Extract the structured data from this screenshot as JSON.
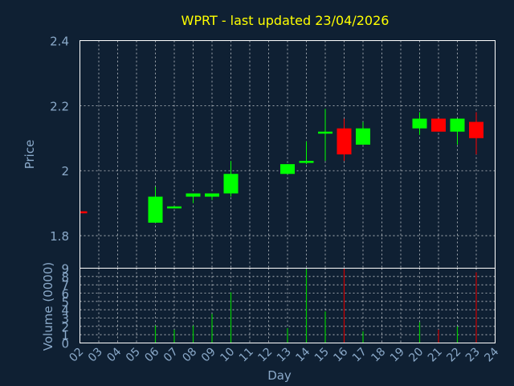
{
  "chart_data": {
    "type": "candlestick",
    "title": "WPRT - last updated 23/04/2026",
    "xlabel": "Day",
    "price_ylabel": "Price",
    "volume_ylabel": "Volume (0000)",
    "categories": [
      "02",
      "03",
      "04",
      "05",
      "06",
      "07",
      "08",
      "09",
      "10",
      "11",
      "12",
      "13",
      "14",
      "15",
      "16",
      "17",
      "18",
      "19",
      "20",
      "21",
      "22",
      "23",
      "24"
    ],
    "price_ylim": [
      1.7,
      2.4
    ],
    "price_ticks": [
      "1.8",
      "2",
      "2.2",
      "2.4"
    ],
    "volume_ylim": [
      0,
      9
    ],
    "volume_ticks": [
      "0",
      "1",
      "2",
      "3",
      "4",
      "5",
      "6",
      "7",
      "8",
      "9"
    ],
    "grid": true,
    "candles": [
      {
        "day": "02",
        "open": 1.875,
        "high": 1.875,
        "low": 1.87,
        "close": 1.87,
        "volume": 0.0
      },
      {
        "day": "06",
        "open": 1.84,
        "high": 1.95,
        "low": 1.84,
        "close": 1.92,
        "volume": 2.1
      },
      {
        "day": "07",
        "open": 1.89,
        "high": 1.89,
        "low": 1.885,
        "close": 1.89,
        "volume": 1.6
      },
      {
        "day": "08",
        "open": 1.92,
        "high": 1.93,
        "low": 1.9,
        "close": 1.93,
        "volume": 2.1
      },
      {
        "day": "09",
        "open": 1.92,
        "high": 1.93,
        "low": 1.91,
        "close": 1.93,
        "volume": 3.5
      },
      {
        "day": "10",
        "open": 1.93,
        "high": 2.03,
        "low": 1.92,
        "close": 1.99,
        "volume": 6.1
      },
      {
        "day": "13",
        "open": 1.99,
        "high": 2.02,
        "low": 1.99,
        "close": 2.02,
        "volume": 1.8
      },
      {
        "day": "14",
        "open": 2.03,
        "high": 2.09,
        "low": 2.02,
        "close": 2.03,
        "volume": 8.9
      },
      {
        "day": "15",
        "open": 2.12,
        "high": 2.19,
        "low": 2.03,
        "close": 2.12,
        "volume": 3.8
      },
      {
        "day": "16",
        "open": 2.13,
        "high": 2.16,
        "low": 2.03,
        "close": 2.05,
        "volume": 9.0
      },
      {
        "day": "17",
        "open": 2.08,
        "high": 2.15,
        "low": 2.08,
        "close": 2.13,
        "volume": 1.4
      },
      {
        "day": "20",
        "open": 2.13,
        "high": 2.18,
        "low": 2.11,
        "close": 2.16,
        "volume": 2.5
      },
      {
        "day": "21",
        "open": 2.16,
        "high": 2.16,
        "low": 2.12,
        "close": 2.12,
        "volume": 1.6
      },
      {
        "day": "22",
        "open": 2.12,
        "high": 2.16,
        "low": 2.08,
        "close": 2.16,
        "volume": 2.0
      },
      {
        "day": "23",
        "open": 2.15,
        "high": 2.18,
        "low": 2.05,
        "close": 2.1,
        "volume": 8.5
      }
    ],
    "colors": {
      "background": "#0f2033",
      "axis": "#ffffff",
      "grid": "#ffffff",
      "title": "#ffff00",
      "label": "#8aa9c9",
      "up": "#00ff00",
      "down": "#ff0000",
      "volume_up": "#00cc00",
      "volume_down": "#cc0000"
    }
  }
}
